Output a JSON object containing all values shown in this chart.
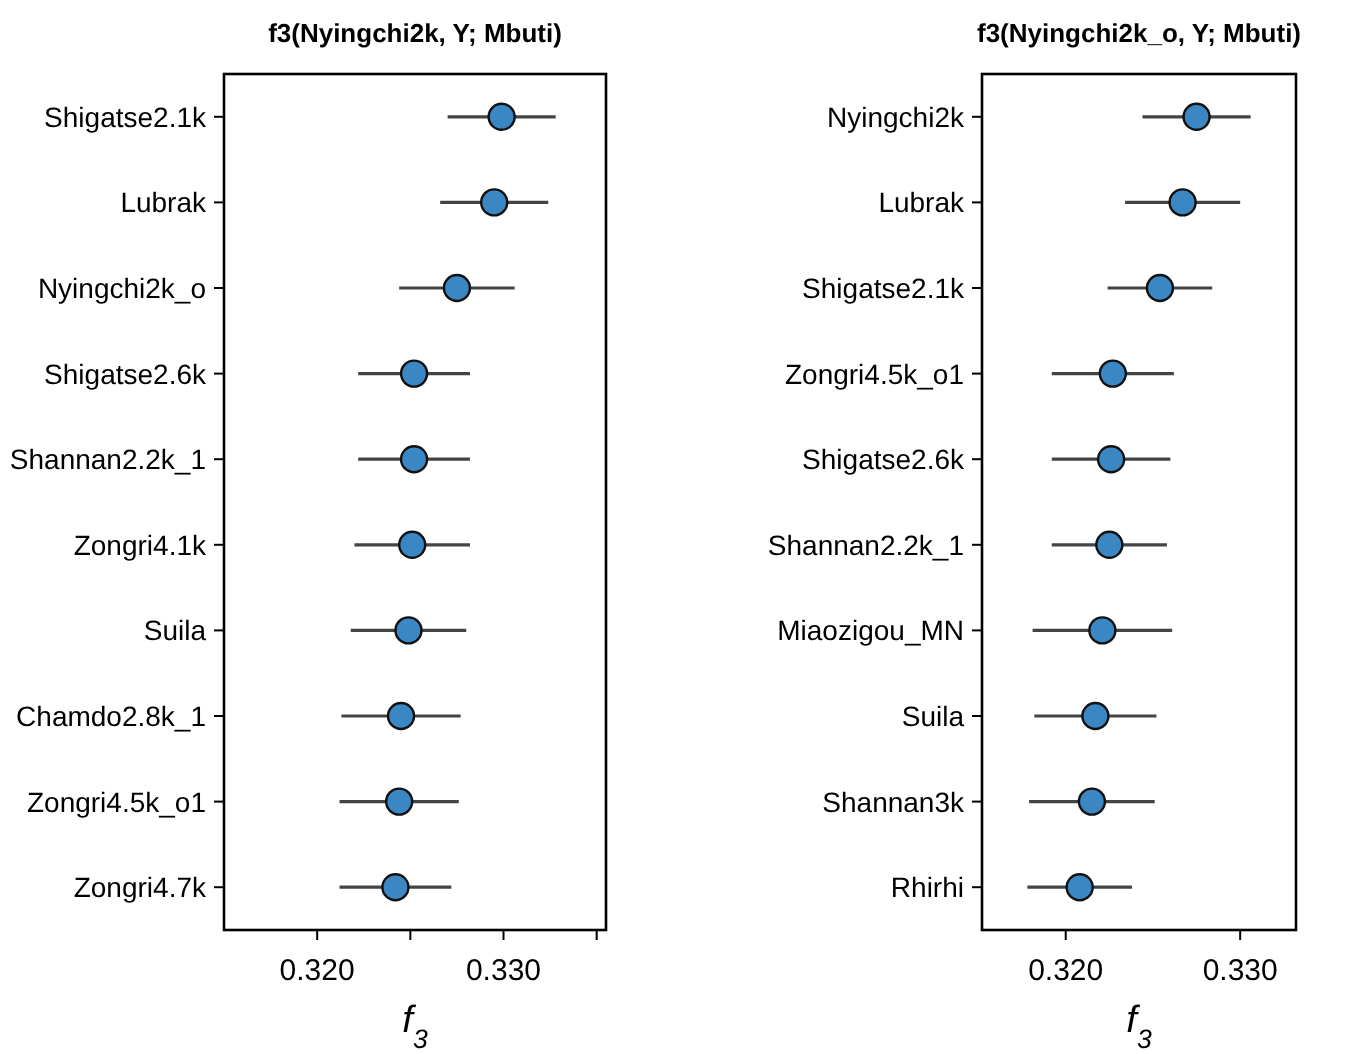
{
  "chart_data": [
    {
      "type": "scatter",
      "title": "f3(Nyingchi2k, Y; Mbuti)",
      "xlabel": "f$_{3}$",
      "orientation": "horizontal",
      "marker": "circle",
      "grid": false,
      "categories": [
        "Shigatse2.1k",
        "Lubrak",
        "Nyingchi2k_o",
        "Shigatse2.6k",
        "Shannan2.2k_1",
        "Zongri4.1k",
        "Suila",
        "Chamdo2.8k_1",
        "Zongri4.5k_o1",
        "Zongri4.7k"
      ],
      "color": "#3a87c4",
      "values": [
        0.3299,
        0.3295,
        0.3275,
        0.3252,
        0.3252,
        0.3251,
        0.3249,
        0.3245,
        0.3244,
        0.3242
      ],
      "errors": [
        0.0029,
        0.0029,
        0.0031,
        0.003,
        0.003,
        0.0031,
        0.0031,
        0.0032,
        0.0032,
        0.003
      ],
      "xlim": [
        0.315,
        0.3355
      ],
      "xticks": [
        {
          "value": 0.32,
          "label": "0.320"
        },
        {
          "value": 0.325,
          "label": null
        },
        {
          "value": 0.33,
          "label": "0.330"
        },
        {
          "value": 0.335,
          "label": null
        }
      ]
    },
    {
      "type": "scatter",
      "title": "f3(Nyingchi2k_o, Y; Mbuti)",
      "xlabel": "f$_{3}$",
      "orientation": "horizontal",
      "marker": "circle",
      "grid": false,
      "categories": [
        "Nyingchi2k",
        "Lubrak",
        "Shigatse2.1k",
        "Zongri4.5k_o1",
        "Shigatse2.6k",
        "Shannan2.2k_1",
        "Miaozigou_MN",
        "Suila",
        "Shannan3k",
        "Rhirhi"
      ],
      "color": "#3a87c4",
      "values": [
        0.3275,
        0.3267,
        0.3254,
        0.3227,
        0.3226,
        0.3225,
        0.3221,
        0.3217,
        0.3215,
        0.3208
      ],
      "errors": [
        0.0031,
        0.0033,
        0.003,
        0.0035,
        0.0034,
        0.0033,
        0.004,
        0.0035,
        0.0036,
        0.003
      ],
      "xlim": [
        0.3152,
        0.3332
      ],
      "xticks": [
        {
          "value": 0.32,
          "label": "0.320"
        },
        {
          "value": 0.33,
          "label": "0.330"
        }
      ]
    }
  ]
}
